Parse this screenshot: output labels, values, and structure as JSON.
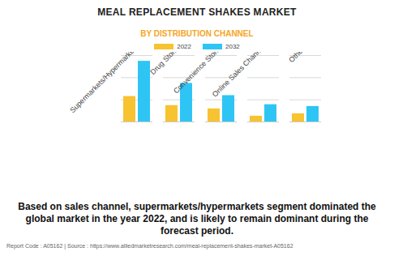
{
  "chart_data": {
    "type": "bar",
    "title": "MEAL REPLACEMENT SHAKES MARKET",
    "subtitle": "BY DISTRIBUTION CHANNEL",
    "categories": [
      "Supermarkets/Hypermarkets",
      "Drug Stores",
      "Convenience Stores",
      "Online Sales Channel",
      "Others"
    ],
    "series": [
      {
        "name": "2022",
        "color": "#f7c331",
        "values": [
          1.15,
          0.74,
          0.59,
          0.26,
          0.37
        ]
      },
      {
        "name": "2032",
        "color": "#2ec5f5",
        "values": [
          2.74,
          1.74,
          1.19,
          0.78,
          0.7
        ]
      }
    ],
    "ylim": [
      0,
      3
    ],
    "yticks": [
      0,
      1,
      2,
      3
    ],
    "grid": true,
    "tick_labels": "x",
    "legend": "top",
    "caption": "Based on sales channel, supermarkets/hypermarkets segment dominated the global market in the year 2022, and is likely to remain dominant during the forecast period.",
    "footer": "Report Code : A05162  |  Source : https://www.alliedmarketresearch.com/meal-replacement-shakes-market-A05162"
  }
}
